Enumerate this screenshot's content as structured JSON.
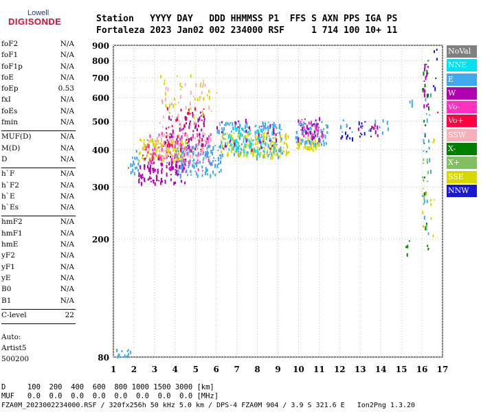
{
  "logo": {
    "top": "Lowell",
    "main": "DIGISONDE"
  },
  "header": {
    "line1": "Station   YYYY DAY   DDD HHMMSS P1  FFS S AXN PPS IGA PS",
    "line2": "Fortaleza 2023 Jan02 002 234000 RSF     1 714 100 10+ 11"
  },
  "params": {
    "group1": [
      {
        "k": "foF2",
        "v": "N/A"
      },
      {
        "k": "foF1",
        "v": "N/A"
      },
      {
        "k": "foF1p",
        "v": "N/A"
      },
      {
        "k": "foE",
        "v": "N/A"
      },
      {
        "k": "foEp",
        "v": "0.53"
      },
      {
        "k": "fxI",
        "v": "N/A"
      },
      {
        "k": "foEs",
        "v": "N/A"
      },
      {
        "k": "fmin",
        "v": "N/A"
      }
    ],
    "group2": [
      {
        "k": "MUF(D)",
        "v": "N/A"
      },
      {
        "k": "M(D)",
        "v": "N/A"
      },
      {
        "k": "D",
        "v": "N/A"
      }
    ],
    "group3": [
      {
        "k": "h`F",
        "v": "N/A"
      },
      {
        "k": "h`F2",
        "v": "N/A"
      },
      {
        "k": "h`E",
        "v": "N/A"
      },
      {
        "k": "h`Es",
        "v": "N/A"
      }
    ],
    "group4": [
      {
        "k": "hmF2",
        "v": "N/A"
      },
      {
        "k": "hmF1",
        "v": "N/A"
      },
      {
        "k": "hmE",
        "v": "N/A"
      },
      {
        "k": "yF2",
        "v": "N/A"
      },
      {
        "k": "yF1",
        "v": "N/A"
      },
      {
        "k": "yE",
        "v": "N/A"
      },
      {
        "k": "B0",
        "v": "N/A"
      },
      {
        "k": "B1",
        "v": "N/A"
      }
    ],
    "clevel": {
      "k": "C-level",
      "v": "22"
    }
  },
  "auto": {
    "l1": "Auto:",
    "l2": "Artist5",
    "l3": "500200"
  },
  "legend": [
    {
      "label": "NoVal",
      "color": "#808080"
    },
    {
      "label": "NNE",
      "color": "#00e0f0"
    },
    {
      "label": "E",
      "color": "#40a8f0"
    },
    {
      "label": "W",
      "color": "#b000b0"
    },
    {
      "label": "Vo-",
      "color": "#ff30c0"
    },
    {
      "label": "Vo+",
      "color": "#ff0040"
    },
    {
      "label": "SSW",
      "color": "#f8b0b8"
    },
    {
      "label": "X-",
      "color": "#008000"
    },
    {
      "label": "X+",
      "color": "#80c060"
    },
    {
      "label": "SSE",
      "color": "#d8d800"
    },
    {
      "label": "NNW",
      "color": "#1818d0"
    }
  ],
  "bottom": {
    "d_row": "D     100  200  400  600  800 1000 1500 3000 [km]",
    "muf_row": "MUF   0.0  0.0  0.0  0.0  0.0  0.0  0.0  0.0 [MHz]",
    "footer": "FZA0M_2023002234000.RSF / 320fx256h 50 kHz 5.0 km / DPS-4 FZA0M 904 / 3.9 S 321.6 E   Ion2Png 1.3.20"
  },
  "chart_data": {
    "type": "scatter",
    "x_ticks": [
      1,
      2,
      3,
      4,
      5,
      6,
      7,
      8,
      9,
      10,
      11,
      12,
      13,
      14,
      15,
      16,
      17
    ],
    "y_ticks": [
      80,
      200,
      300,
      400,
      500,
      600,
      700,
      800,
      900
    ],
    "xlim": [
      1,
      17
    ],
    "ylim": [
      80,
      900
    ],
    "y_scale": "log",
    "clusters": [
      {
        "color": "#40a8f0",
        "x": [
          1.0,
          1.8
        ],
        "y": [
          80,
          86
        ],
        "n": 12
      },
      {
        "color": "#40a8f0",
        "x": [
          1.7,
          2.2
        ],
        "y": [
          330,
          400
        ],
        "n": 20
      },
      {
        "color": "#b000b0",
        "x": [
          2.2,
          4.5
        ],
        "y": [
          310,
          390
        ],
        "n": 120
      },
      {
        "color": "#d8d800",
        "x": [
          2.2,
          4.5
        ],
        "y": [
          370,
          440
        ],
        "n": 120
      },
      {
        "color": "#ff30c0",
        "x": [
          2.5,
          5.8
        ],
        "y": [
          340,
          460
        ],
        "n": 100
      },
      {
        "color": "#f8b0b8",
        "x": [
          3.0,
          5.8
        ],
        "y": [
          380,
          460
        ],
        "n": 80
      },
      {
        "color": "#40a8f0",
        "x": [
          4.0,
          6.2
        ],
        "y": [
          330,
          420
        ],
        "n": 120
      },
      {
        "color": "#ff0040",
        "x": [
          3.5,
          5.5
        ],
        "y": [
          400,
          560
        ],
        "n": 40
      },
      {
        "color": "#b000b0",
        "x": [
          3.5,
          5.6
        ],
        "y": [
          410,
          540
        ],
        "n": 50
      },
      {
        "color": "#d8d800",
        "x": [
          3.2,
          6.0
        ],
        "y": [
          520,
          720
        ],
        "n": 35
      },
      {
        "color": "#f8b0b8",
        "x": [
          3.2,
          6.0
        ],
        "y": [
          480,
          680
        ],
        "n": 30
      },
      {
        "color": "#40a8f0",
        "x": [
          6.0,
          9.2
        ],
        "y": [
          380,
          500
        ],
        "n": 160
      },
      {
        "color": "#d8d800",
        "x": [
          6.2,
          9.5
        ],
        "y": [
          380,
          460
        ],
        "n": 150
      },
      {
        "color": "#00e0f0",
        "x": [
          6.5,
          9.0
        ],
        "y": [
          390,
          480
        ],
        "n": 60
      },
      {
        "color": "#b000b0",
        "x": [
          6.0,
          9.0
        ],
        "y": [
          400,
          520
        ],
        "n": 30
      },
      {
        "color": "#d8d800",
        "x": [
          9.8,
          11.0
        ],
        "y": [
          400,
          440
        ],
        "n": 50
      },
      {
        "color": "#40a8f0",
        "x": [
          9.8,
          11.4
        ],
        "y": [
          420,
          500
        ],
        "n": 60
      },
      {
        "color": "#b000b0",
        "x": [
          9.9,
          11.2
        ],
        "y": [
          430,
          520
        ],
        "n": 30
      },
      {
        "color": "#ff30c0",
        "x": [
          10.0,
          11.2
        ],
        "y": [
          440,
          510
        ],
        "n": 20
      },
      {
        "color": "#1818d0",
        "x": [
          12.0,
          13.5
        ],
        "y": [
          440,
          500
        ],
        "n": 18
      },
      {
        "color": "#40a8f0",
        "x": [
          12.0,
          14.4
        ],
        "y": [
          460,
          510
        ],
        "n": 14
      },
      {
        "color": "#b000b0",
        "x": [
          12.5,
          14.2
        ],
        "y": [
          450,
          500
        ],
        "n": 10
      },
      {
        "color": "#008000",
        "x": [
          15.2,
          15.4
        ],
        "y": [
          170,
          200
        ],
        "n": 4
      },
      {
        "color": "#40a8f0",
        "x": [
          15.3,
          15.5
        ],
        "y": [
          500,
          650
        ],
        "n": 3
      },
      {
        "color": "#008000",
        "x": [
          16.0,
          16.3
        ],
        "y": [
          170,
          860
        ],
        "n": 25
      },
      {
        "color": "#b000b0",
        "x": [
          16.0,
          16.3
        ],
        "y": [
          560,
          860
        ],
        "n": 14
      },
      {
        "color": "#40a8f0",
        "x": [
          16.0,
          16.4
        ],
        "y": [
          180,
          650
        ],
        "n": 18
      },
      {
        "color": "#80c060",
        "x": [
          16.0,
          16.3
        ],
        "y": [
          180,
          400
        ],
        "n": 10
      },
      {
        "color": "#d8d800",
        "x": [
          16.0,
          16.6
        ],
        "y": [
          200,
          300
        ],
        "n": 10
      },
      {
        "color": "#1818d0",
        "x": [
          16.5,
          16.7
        ],
        "y": [
          640,
          880
        ],
        "n": 6
      },
      {
        "color": "#ff0040",
        "x": [
          16.7,
          16.8
        ],
        "y": [
          530,
          550
        ],
        "n": 2
      },
      {
        "color": "#d8d800",
        "x": [
          16.4,
          16.6
        ],
        "y": [
          420,
          440
        ],
        "n": 3
      }
    ]
  }
}
